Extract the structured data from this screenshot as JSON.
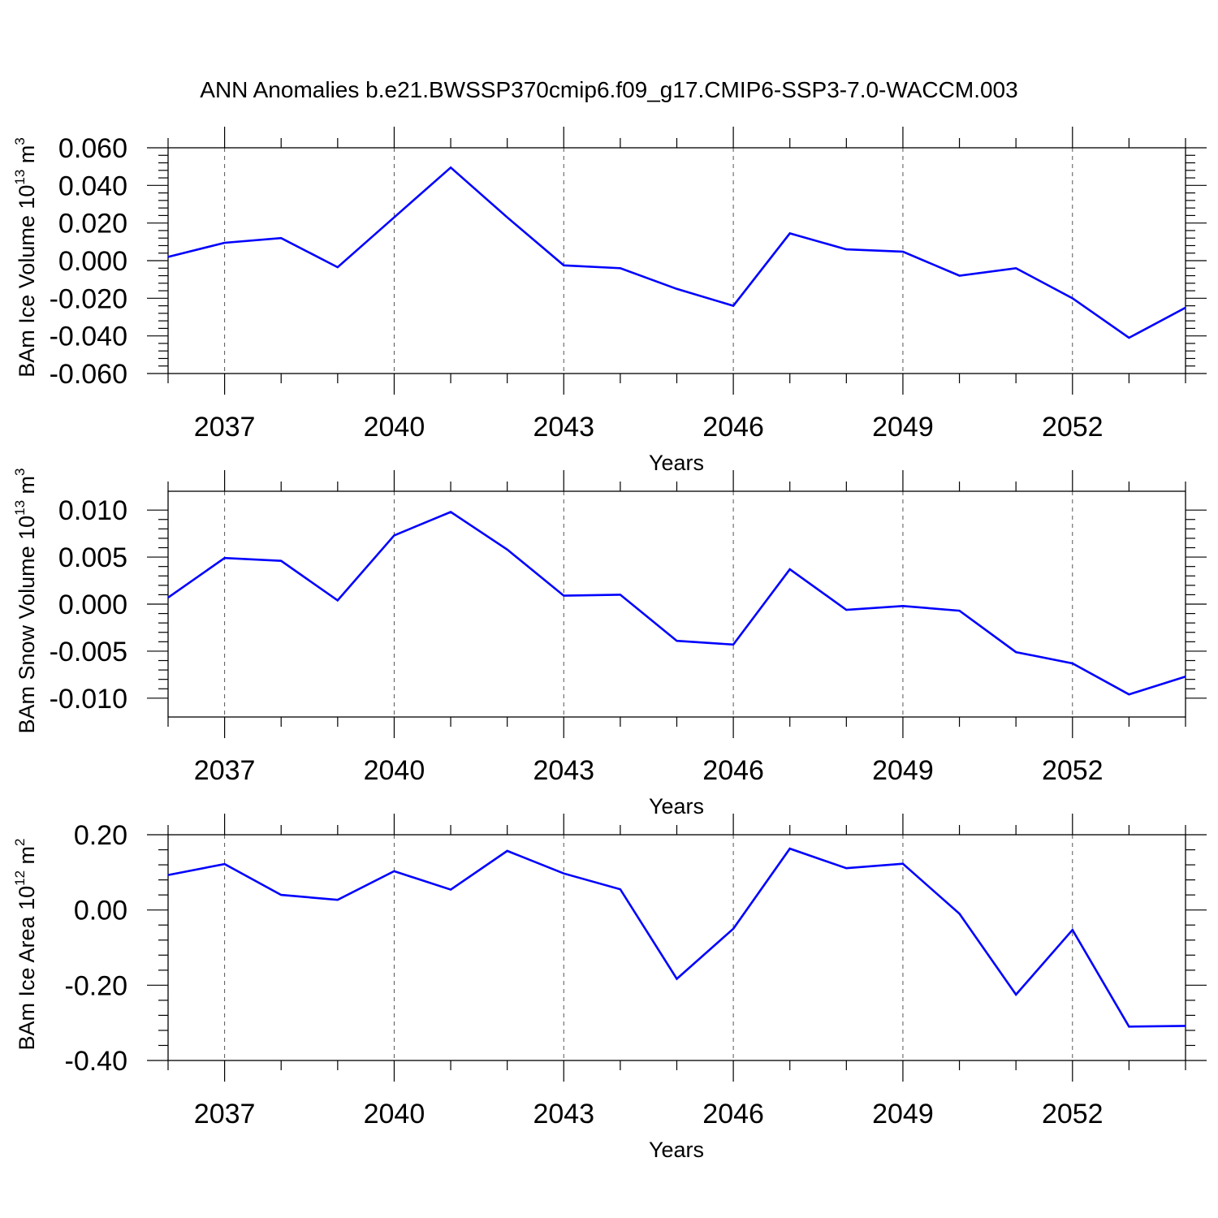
{
  "title": "ANN Anomalies b.e21.BWSSP370cmip6.f09_g17.CMIP6-SSP3-7.0-WACCM.003",
  "line_color": "#0000ff",
  "chart_data": [
    {
      "type": "line",
      "xlabel": "Years",
      "ylabel": {
        "main": "BAm Ice Volume 10",
        "exp": "13",
        "unit_main": " m",
        "unit_exp": "3"
      },
      "xlim": [
        2036,
        2054
      ],
      "ylim": [
        -0.06,
        0.06
      ],
      "x_ticks": [
        2037,
        2040,
        2043,
        2046,
        2049,
        2052
      ],
      "y_ticks": [
        -0.06,
        -0.04,
        -0.02,
        0.0,
        0.02,
        0.04,
        0.06
      ],
      "y_tick_labels": [
        "-0.060",
        "-0.040",
        "-0.020",
        "0.000",
        "0.020",
        "0.040",
        "0.060"
      ],
      "grid": "vertical dashed at labeled years",
      "series": [
        {
          "x": [
            2036,
            2037,
            2038,
            2039,
            2040,
            2041,
            2042,
            2043,
            2044,
            2045,
            2046,
            2047,
            2048,
            2049,
            2050,
            2051,
            2052,
            2053,
            2054
          ],
          "values": [
            0.002,
            0.0095,
            0.012,
            -0.0035,
            0.023,
            0.0495,
            0.023,
            -0.0025,
            -0.004,
            -0.015,
            -0.024,
            0.0145,
            0.006,
            0.0048,
            -0.008,
            -0.004,
            -0.02,
            -0.041,
            -0.025
          ]
        }
      ]
    },
    {
      "type": "line",
      "xlabel": "Years",
      "ylabel": {
        "main": "BAm Snow Volume 10",
        "exp": "13",
        "unit_main": " m",
        "unit_exp": "3"
      },
      "xlim": [
        2036,
        2054
      ],
      "ylim": [
        -0.012,
        0.012
      ],
      "x_ticks": [
        2037,
        2040,
        2043,
        2046,
        2049,
        2052
      ],
      "y_ticks": [
        -0.01,
        -0.005,
        0.0,
        0.005,
        0.01
      ],
      "y_tick_labels": [
        "-0.010",
        "-0.005",
        "0.000",
        "0.005",
        "0.010"
      ],
      "grid": "vertical dashed at labeled years",
      "series": [
        {
          "x": [
            2036,
            2037,
            2038,
            2039,
            2040,
            2041,
            2042,
            2043,
            2044,
            2045,
            2046,
            2047,
            2048,
            2049,
            2050,
            2051,
            2052,
            2053,
            2054
          ],
          "values": [
            0.0007,
            0.0049,
            0.0046,
            0.0004,
            0.0073,
            0.0098,
            0.0058,
            0.0009,
            0.001,
            -0.0039,
            -0.0043,
            0.0037,
            -0.0006,
            -0.0002,
            -0.0007,
            -0.0051,
            -0.0063,
            -0.0096,
            -0.0077
          ]
        }
      ]
    },
    {
      "type": "line",
      "xlabel": "Years",
      "ylabel": {
        "main": "BAm Ice Area 10",
        "exp": "12",
        "unit_main": " m",
        "unit_exp": "2"
      },
      "xlim": [
        2036,
        2054
      ],
      "ylim": [
        -0.4,
        0.2
      ],
      "x_ticks": [
        2037,
        2040,
        2043,
        2046,
        2049,
        2052
      ],
      "y_ticks": [
        -0.4,
        -0.2,
        0.0,
        0.2
      ],
      "y_tick_labels": [
        "-0.40",
        "-0.20",
        "0.00",
        "0.20"
      ],
      "grid": "vertical dashed at labeled years",
      "series": [
        {
          "x": [
            2036,
            2037,
            2038,
            2039,
            2040,
            2041,
            2042,
            2043,
            2044,
            2045,
            2046,
            2047,
            2048,
            2049,
            2050,
            2051,
            2052,
            2053,
            2054
          ],
          "values": [
            0.093,
            0.122,
            0.04,
            0.027,
            0.103,
            0.054,
            0.157,
            0.097,
            0.055,
            -0.183,
            -0.05,
            0.163,
            0.111,
            0.123,
            -0.01,
            -0.225,
            -0.053,
            -0.31,
            -0.308
          ]
        }
      ]
    }
  ]
}
